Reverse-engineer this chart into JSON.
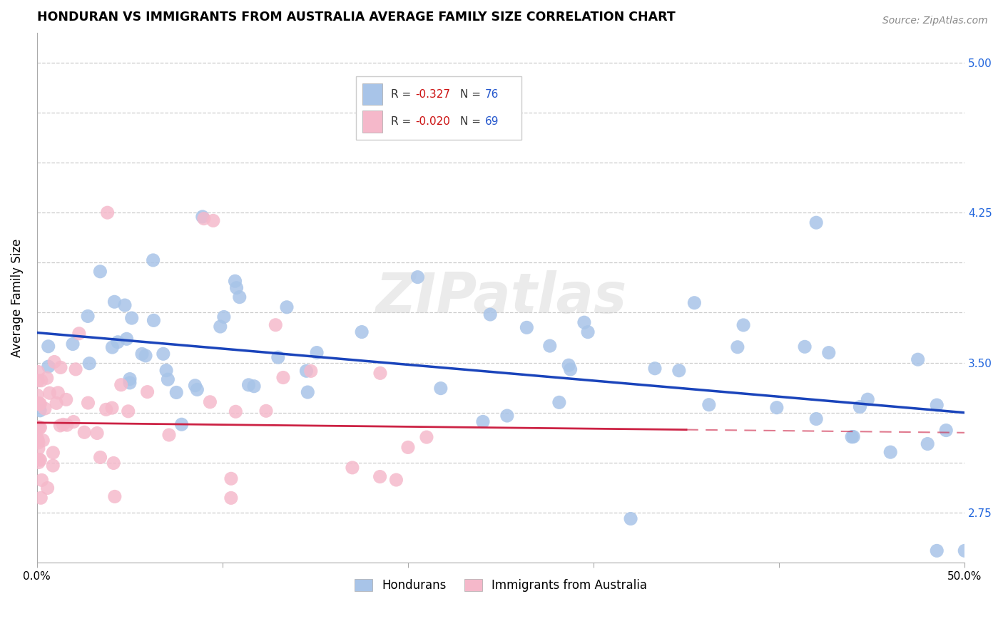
{
  "title": "HONDURAN VS IMMIGRANTS FROM AUSTRALIA AVERAGE FAMILY SIZE CORRELATION CHART",
  "source": "Source: ZipAtlas.com",
  "ylabel": "Average Family Size",
  "xlim": [
    0.0,
    0.5
  ],
  "ylim": [
    2.5,
    5.15
  ],
  "yticks": [
    2.75,
    3.0,
    3.25,
    3.5,
    3.75,
    4.0,
    4.25,
    4.5,
    4.75,
    5.0
  ],
  "xticks": [
    0.0,
    0.1,
    0.2,
    0.3,
    0.4,
    0.5
  ],
  "xtick_labels": [
    "0.0%",
    "",
    "",
    "",
    "",
    "50.0%"
  ],
  "blue_color": "#a8c4e8",
  "pink_color": "#f5b8ca",
  "blue_line_color": "#1a44bb",
  "pink_line_color": "#cc2244",
  "label_blue": "Hondurans",
  "label_pink": "Immigrants from Australia",
  "title_fontsize": 12.5,
  "axis_label_fontsize": 12,
  "tick_fontsize": 11,
  "watermark": "ZIPatlas",
  "blue_R": -0.327,
  "blue_N": 76,
  "pink_R": -0.02,
  "pink_N": 69,
  "blue_intercept": 3.65,
  "blue_slope": -0.8,
  "pink_intercept": 3.2,
  "pink_slope": -0.1,
  "right_ytick_labels": [
    "2.75",
    "",
    "",
    "3.50",
    "",
    "",
    "4.25",
    "",
    "",
    "5.00"
  ]
}
